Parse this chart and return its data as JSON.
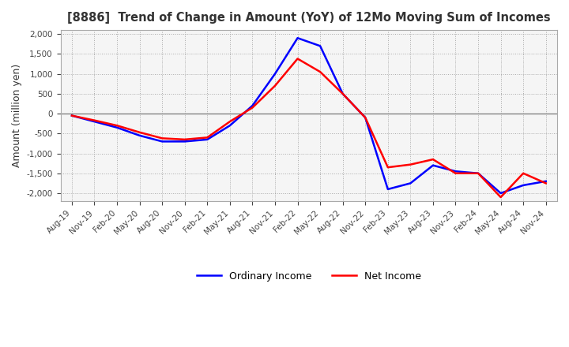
{
  "title": "[8886]  Trend of Change in Amount (YoY) of 12Mo Moving Sum of Incomes",
  "ylabel": "Amount (million yen)",
  "ylim": [
    -2200,
    2100
  ],
  "yticks": [
    -2000,
    -1500,
    -1000,
    -500,
    0,
    500,
    1000,
    1500,
    2000
  ],
  "ordinary_income_color": "#0000FF",
  "net_income_color": "#FF0000",
  "background_color": "#FFFFFF",
  "plot_bg_color": "#F5F5F5",
  "grid_color": "#AAAAAA",
  "legend_labels": [
    "Ordinary Income",
    "Net Income"
  ],
  "x_labels": [
    "Aug-19",
    "Nov-19",
    "Feb-20",
    "May-20",
    "Aug-20",
    "Nov-20",
    "Feb-21",
    "May-21",
    "Aug-21",
    "Nov-21",
    "Feb-22",
    "May-22",
    "Aug-22",
    "Nov-22",
    "Feb-23",
    "May-23",
    "Aug-23",
    "Nov-23",
    "Feb-24",
    "May-24",
    "Aug-24",
    "Nov-24"
  ],
  "ordinary_income": [
    -50,
    -200,
    -350,
    -550,
    -700,
    -700,
    -650,
    -300,
    200,
    1000,
    1900,
    1700,
    500,
    -100,
    -1900,
    -1750,
    -1300,
    -1450,
    -1500,
    -2000,
    -1800,
    -1700
  ],
  "net_income": [
    -50,
    -170,
    -300,
    -470,
    -620,
    -650,
    -600,
    -200,
    150,
    700,
    1380,
    1050,
    500,
    -100,
    -1350,
    -1280,
    -1150,
    -1500,
    -1500,
    -2100,
    -1500,
    -1750
  ]
}
